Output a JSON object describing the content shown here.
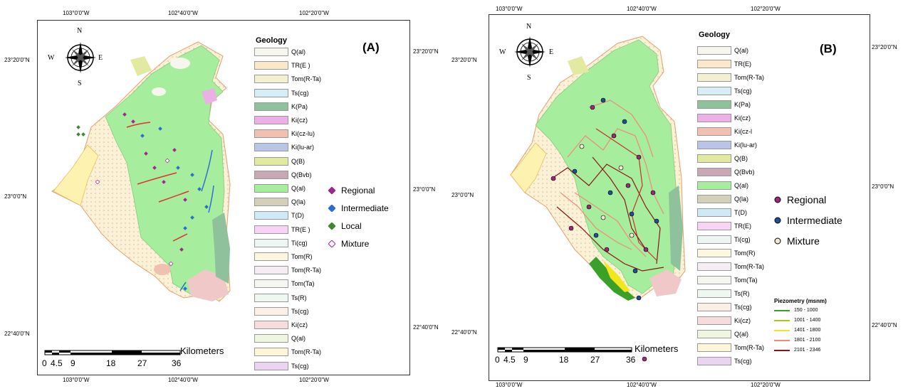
{
  "panelA": {
    "label": "(A)",
    "top_ticks": [
      "103°0'0\"W",
      "102°40'0\"W",
      "102°20'0\"W"
    ],
    "bottom_ticks": [
      "103°0'0\"W",
      "102°40'0\"W",
      "102°20'0\"W"
    ],
    "left_ticks": [
      "23°20'0\"N",
      "23°0'0\"N",
      "22°40'0\"N"
    ],
    "right_ticks": [
      "23°20'0\"N",
      "23°0'0\"N",
      "22°40'0\"N"
    ],
    "legend_title": "Geology",
    "legend_items": [
      {
        "label": "Q(al)",
        "color": "#f6f6ee"
      },
      {
        "label": "TR(E )",
        "color": "#fbe8c8"
      },
      {
        "label": "Tom(R-Ta)",
        "color": "#f3f0d2"
      },
      {
        "label": "Ts(cg)",
        "color": "#d8eef6"
      },
      {
        "label": "K(Pa)",
        "color": "#8fc29c"
      },
      {
        "label": "Ki(cz)",
        "color": "#ecb0e6"
      },
      {
        "label": "Ki(cz-lu)",
        "color": "#f2c0b0"
      },
      {
        "label": "Ki(lu-ar)",
        "color": "#b9c4e6"
      },
      {
        "label": "Q(B)",
        "color": "#e2eaa2"
      },
      {
        "label": "Q(Bvb)",
        "color": "#c8a8b4"
      },
      {
        "label": "Q(al)",
        "color": "#a6ed9e"
      },
      {
        "label": "Q(la)",
        "color": "#d4cfb8"
      },
      {
        "label": "T(D)",
        "color": "#cfeaf6"
      },
      {
        "label": "TR(E )",
        "color": "#f8d4f4"
      },
      {
        "label": "Ti(cg)",
        "color": "#eef6f4"
      },
      {
        "label": "Tom(R)",
        "color": "#fdf7e0"
      },
      {
        "label": "Tom(R-Ta)",
        "color": "#f6ecf4"
      },
      {
        "label": "Tom(Ta)",
        "color": "#f6f6f0"
      },
      {
        "label": "Ts(R)",
        "color": "#eef8f0"
      },
      {
        "label": "Ts(cg)",
        "color": "#fcf0e6"
      },
      {
        "label": "Ki(cz)",
        "color": "#f6dcdc"
      },
      {
        "label": "Q(al)",
        "color": "#eef6e0"
      },
      {
        "label": "Tom(R-Ta)",
        "color": "#fdf6d8"
      },
      {
        "label": "Ts(cg)",
        "color": "#ead4f2"
      }
    ],
    "points_legend": [
      {
        "label": "Regional",
        "color": "#a0288c"
      },
      {
        "label": "Intermediate",
        "color": "#2a6fcf"
      },
      {
        "label": "Local",
        "color": "#3a8c2a"
      },
      {
        "label": "Mixture",
        "color": "#ffffff"
      }
    ],
    "scale_labels": [
      "0",
      "4.5",
      "9",
      "18",
      "27",
      "36"
    ],
    "scale_unit": "Kilometers"
  },
  "panelB": {
    "label": "(B)",
    "top_ticks": [
      "103°0'0\"W",
      "102°40'0\"W",
      "102°20'0\"W"
    ],
    "bottom_ticks": [
      "103°0'0\"W",
      "102°40'0\"W",
      "102°20'0\"W"
    ],
    "left_ticks": [
      "23°20'0\"N",
      "23°0'0\"N",
      "22°40'0\"N"
    ],
    "right_ticks": [
      "23°20'0\"N",
      "23°0'0\"N",
      "22°40'0\"N"
    ],
    "legend_title": "Geology",
    "legend_items": [
      {
        "label": "Q(al)",
        "color": "#f6f6ee"
      },
      {
        "label": "TR(E)",
        "color": "#fbe8c8"
      },
      {
        "label": "Tom(R-Ta)",
        "color": "#f3f0d2"
      },
      {
        "label": "Ts(cg)",
        "color": "#d8eef6"
      },
      {
        "label": "K(Pa)",
        "color": "#8fc29c"
      },
      {
        "label": "Ki(cz)",
        "color": "#ecb0e6"
      },
      {
        "label": "Ki(cz-l",
        "color": "#f2c0b0"
      },
      {
        "label": "Ki(lu-ar)",
        "color": "#b9c4e6"
      },
      {
        "label": "Q(B)",
        "color": "#e2eaa2"
      },
      {
        "label": "Q(Bvb)",
        "color": "#c8a8b4"
      },
      {
        "label": "Q(al)",
        "color": "#a6ed9e"
      },
      {
        "label": "Q(la)",
        "color": "#d4cfb8"
      },
      {
        "label": "T(D)",
        "color": "#cfeaf6"
      },
      {
        "label": "TR(E)",
        "color": "#f8d4f4"
      },
      {
        "label": "Ti(cg)",
        "color": "#eef6f4"
      },
      {
        "label": "Tom(R)",
        "color": "#fdf7e0"
      },
      {
        "label": "Tom(R-Ta)",
        "color": "#f6ecf4"
      },
      {
        "label": "Tom(Ta)",
        "color": "#f6f6f0"
      },
      {
        "label": "Ts(R)",
        "color": "#eef8f0"
      },
      {
        "label": "Ts(cg)",
        "color": "#fcf0e6"
      },
      {
        "label": "Ki(cz)",
        "color": "#f6dcdc"
      },
      {
        "label": "Q(al)",
        "color": "#eef6e0"
      },
      {
        "label": "Tom(R-Ta)",
        "color": "#fdf6d8"
      },
      {
        "label": "Ts(cg)",
        "color": "#ead4f2"
      }
    ],
    "points_legend": [
      {
        "label": "Regional",
        "color": "#9a2a7a"
      },
      {
        "label": "Intermediate",
        "color": "#1f4f9a"
      },
      {
        "label": "Mixture",
        "color": "#f4e6d0"
      }
    ],
    "piezometry_title": "Piezometry (msnm)",
    "piezometry": [
      {
        "label": "150 - 1000",
        "color": "#3aa02a"
      },
      {
        "label": "1001 - 1400",
        "color": "#a8c81e"
      },
      {
        "label": "1401 - 1800",
        "color": "#f2e61c"
      },
      {
        "label": "1801 - 2100",
        "color": "#f08a7a"
      },
      {
        "label": "2101 - 2346",
        "color": "#8c1414"
      }
    ],
    "scale_labels": [
      "0",
      "4.5",
      "9",
      "18",
      "27",
      "36"
    ],
    "scale_unit": "Kilometers"
  },
  "compass": {
    "n": "N",
    "s": "S",
    "e": "E",
    "w": "W"
  }
}
